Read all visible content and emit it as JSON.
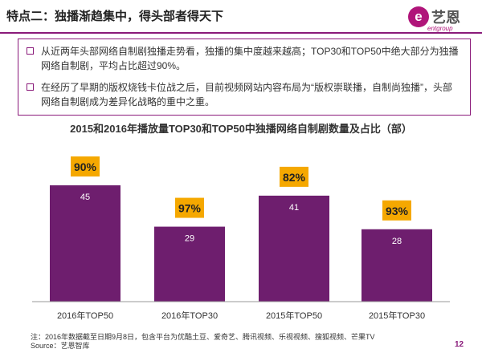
{
  "header": {
    "title": "特点二：独播渐趋集中，得头部者得天下",
    "logo_text": "艺恩",
    "logo_subtext": "entgroup"
  },
  "summary": {
    "bullets": [
      "从近两年头部网络自制剧独播走势看，独播的集中度越来越高；TOP30和TOP50中绝大部分为独播网络自制剧，平均占比超过90%。",
      "在经历了早期的版权烧钱卡位战之后，目前视频网站内容布局为“版权崇联播，自制尚独播”，头部网络自制剧成为差异化战略的重中之重。"
    ]
  },
  "chart_data": {
    "type": "bar",
    "title": "2015和2016年播放量TOP30和TOP50中独播网络自制剧数量及占比（部）",
    "categories": [
      "2016年TOP50",
      "2016年TOP30",
      "2015年TOP50",
      "2015年TOP30"
    ],
    "values": [
      45,
      29,
      41,
      28
    ],
    "percent_labels": [
      "90%",
      "97%",
      "82%",
      "93%"
    ],
    "ylim": [
      0,
      50
    ],
    "grid": false,
    "bar_color": "#6e1e6e",
    "label_box_color": "#f5a800"
  },
  "footer": {
    "note": "注：2016年数据截至日期9月8日，包含平台为优酷土豆、爱奇艺、腾讯视频、乐视视频、搜狐视频、芒果TV",
    "source": "Source：艺恩智库",
    "page_number": "12"
  }
}
